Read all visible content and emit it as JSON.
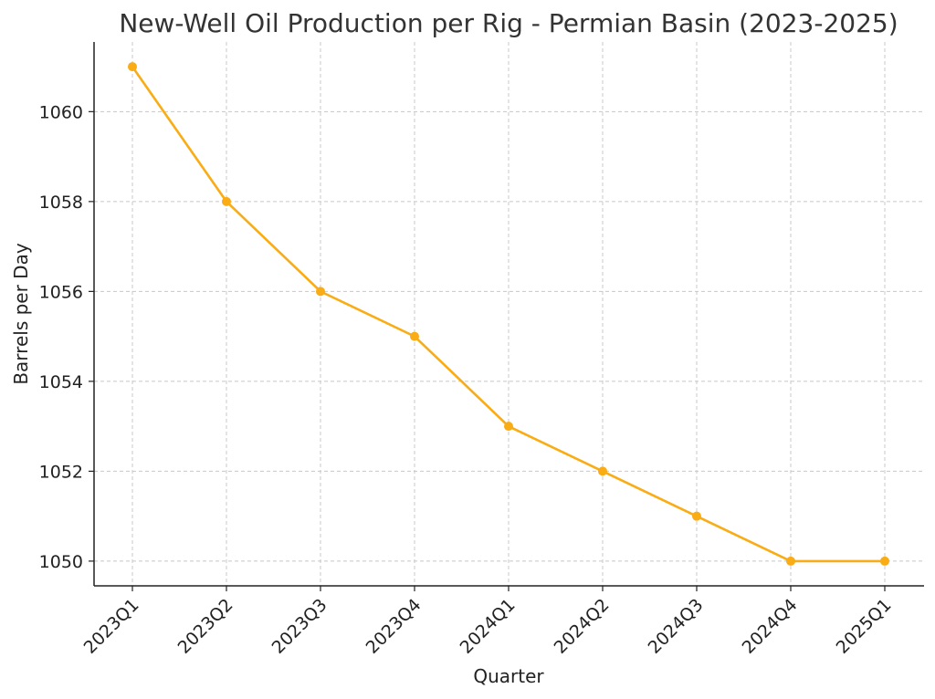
{
  "chart_data": {
    "type": "line",
    "title": "New-Well Oil Production per Rig - Permian Basin (2023-2025)",
    "xlabel": "Quarter",
    "ylabel": "Barrels per Day",
    "categories": [
      "2023Q1",
      "2023Q2",
      "2023Q3",
      "2023Q4",
      "2024Q1",
      "2024Q2",
      "2024Q3",
      "2024Q4",
      "2025Q1"
    ],
    "series": [
      {
        "values": [
          1061,
          1058,
          1056,
          1055,
          1053,
          1052,
          1051,
          1050,
          1050
        ],
        "color": "#f9ac13"
      }
    ],
    "ylim": [
      1049.45,
      1061.55
    ],
    "yticks": [
      "1050",
      "1052",
      "1054",
      "1056",
      "1058",
      "1060"
    ],
    "grid": true,
    "legend": "none"
  }
}
